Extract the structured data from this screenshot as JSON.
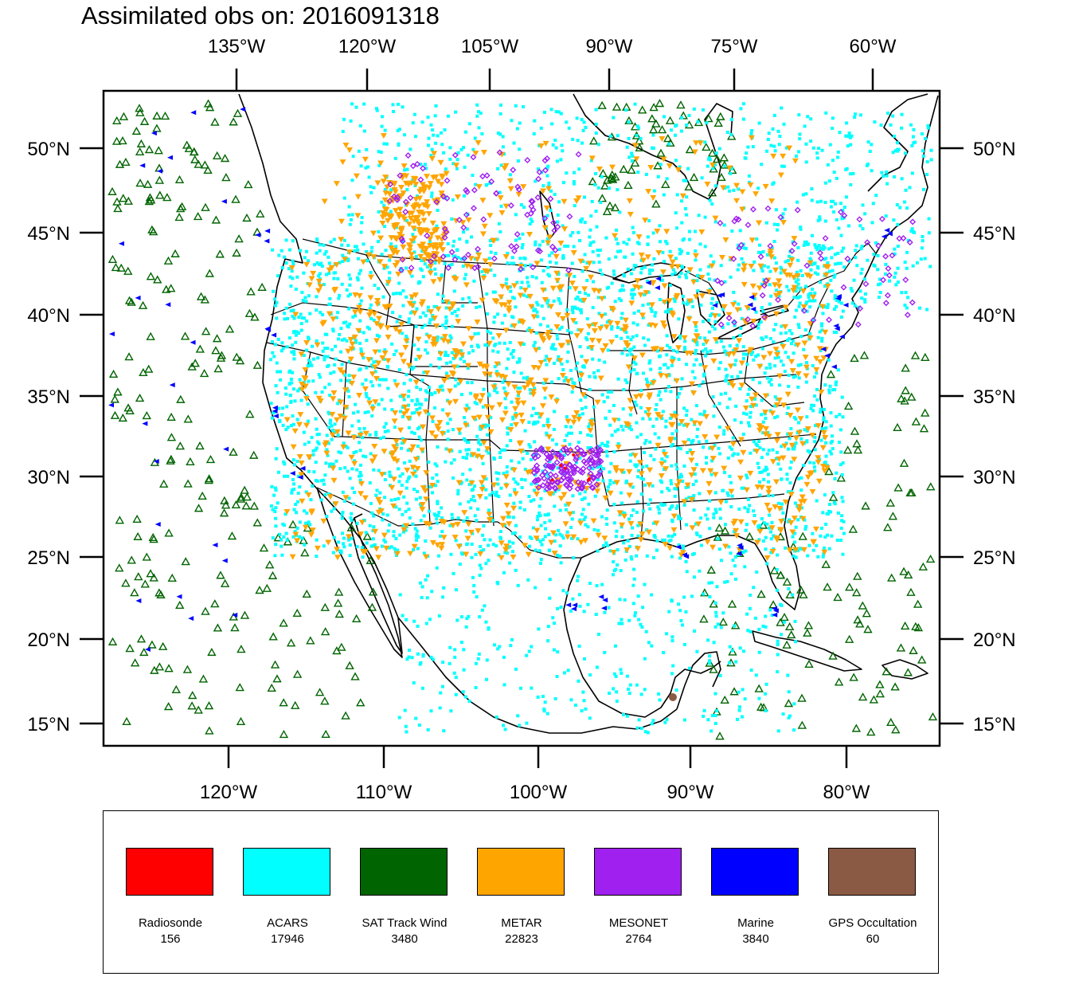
{
  "title": "Assimilated obs on: 2016091318",
  "map": {
    "top_lon_labels": [
      "135°W",
      "120°W",
      "105°W",
      "90°W",
      "75°W",
      "60°W"
    ],
    "bottom_lon_labels": [
      "120°W",
      "110°W",
      "100°W",
      "90°W",
      "80°W"
    ],
    "lat_labels": [
      "50°N",
      "45°N",
      "40°N",
      "35°N",
      "30°N",
      "25°N",
      "20°N",
      "15°N"
    ],
    "land_color": "#ffffff",
    "border_color": "#000000"
  },
  "legend": [
    {
      "name": "Radiosonde",
      "count": "156",
      "color": "#ff0000",
      "marker": "circle"
    },
    {
      "name": "ACARS",
      "count": "17946",
      "color": "#00ffff",
      "marker": "square"
    },
    {
      "name": "SAT Track Wind",
      "count": "3480",
      "color": "#006400",
      "marker": "triangle-up-open"
    },
    {
      "name": "METAR",
      "count": "22823",
      "color": "#ffa500",
      "marker": "triangle-down"
    },
    {
      "name": "MESONET",
      "count": "2764",
      "color": "#a020f0",
      "marker": "diamond"
    },
    {
      "name": "Marine",
      "count": "3840",
      "color": "#0000ff",
      "marker": "triangle-left"
    },
    {
      "name": "GPS Occultation",
      "count": "60",
      "color": "#8b5a44",
      "marker": "circle"
    }
  ]
}
